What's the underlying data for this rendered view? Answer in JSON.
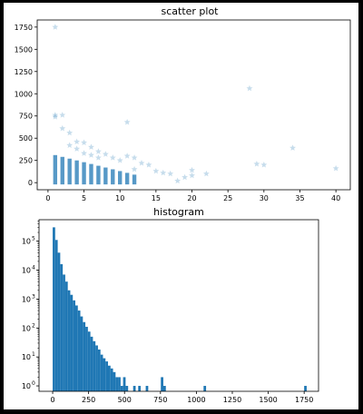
{
  "chart_data": [
    {
      "type": "scatter",
      "title": "scatter plot",
      "xlabel": "",
      "ylabel": "",
      "xlim": [
        -1.5,
        42
      ],
      "ylim": [
        -80,
        1830
      ],
      "xticks": [
        0,
        5,
        10,
        15,
        20,
        25,
        30,
        35,
        40
      ],
      "yticks": [
        0,
        250,
        500,
        750,
        1000,
        1250,
        1500,
        1750
      ],
      "marker": "star",
      "color": "#1f77b4",
      "alpha": 0.2,
      "points": [
        [
          1,
          1750
        ],
        [
          1,
          760
        ],
        [
          1,
          740
        ],
        [
          2,
          760
        ],
        [
          2,
          610
        ],
        [
          3,
          560
        ],
        [
          3,
          420
        ],
        [
          4,
          460
        ],
        [
          4,
          380
        ],
        [
          5,
          450
        ],
        [
          5,
          330
        ],
        [
          6,
          400
        ],
        [
          6,
          310
        ],
        [
          7,
          350
        ],
        [
          7,
          280
        ],
        [
          8,
          320
        ],
        [
          9,
          280
        ],
        [
          10,
          250
        ],
        [
          11,
          680
        ],
        [
          11,
          300
        ],
        [
          12,
          280
        ],
        [
          12,
          150
        ],
        [
          13,
          220
        ],
        [
          14,
          200
        ],
        [
          15,
          130
        ],
        [
          16,
          110
        ],
        [
          17,
          100
        ],
        [
          18,
          20
        ],
        [
          19,
          60
        ],
        [
          20,
          140
        ],
        [
          20,
          80
        ],
        [
          22,
          100
        ],
        [
          28,
          1060
        ],
        [
          29,
          210
        ],
        [
          30,
          200
        ],
        [
          34,
          390
        ],
        [
          40,
          160
        ]
      ]
    },
    {
      "type": "bar",
      "title": "histogram",
      "xlabel": "",
      "ylabel": "",
      "yscale": "log",
      "xlim": [
        -95,
        1850
      ],
      "ylim": [
        0.65,
        550000
      ],
      "xticks": [
        0,
        250,
        500,
        750,
        1000,
        1250,
        1500,
        1750
      ],
      "ytick_labels": [
        "10^0",
        "10^1",
        "10^2",
        "10^3",
        "10^4",
        "10^5"
      ],
      "color": "#1f77b4",
      "bin_width": 17.5,
      "bins": [
        [
          0,
          300000
        ],
        [
          17.5,
          110000
        ],
        [
          35,
          40000
        ],
        [
          52.5,
          16000
        ],
        [
          70,
          7000
        ],
        [
          87.5,
          4000
        ],
        [
          105,
          2000
        ],
        [
          122.5,
          1400
        ],
        [
          140,
          900
        ],
        [
          157.5,
          600
        ],
        [
          175,
          400
        ],
        [
          192.5,
          250
        ],
        [
          210,
          160
        ],
        [
          227.5,
          110
        ],
        [
          245,
          75
        ],
        [
          262.5,
          50
        ],
        [
          280,
          35
        ],
        [
          297.5,
          25
        ],
        [
          315,
          18
        ],
        [
          332.5,
          12
        ],
        [
          350,
          9
        ],
        [
          367.5,
          7
        ],
        [
          385,
          5
        ],
        [
          402.5,
          4
        ],
        [
          420,
          3
        ],
        [
          437.5,
          2
        ],
        [
          455,
          2
        ],
        [
          472.5,
          1
        ],
        [
          490,
          2
        ],
        [
          507.5,
          1
        ],
        [
          560,
          1
        ],
        [
          595,
          1
        ],
        [
          647.5,
          1
        ],
        [
          752.5,
          2
        ],
        [
          770,
          1
        ],
        [
          1050,
          1
        ],
        [
          1750,
          1
        ]
      ]
    }
  ]
}
